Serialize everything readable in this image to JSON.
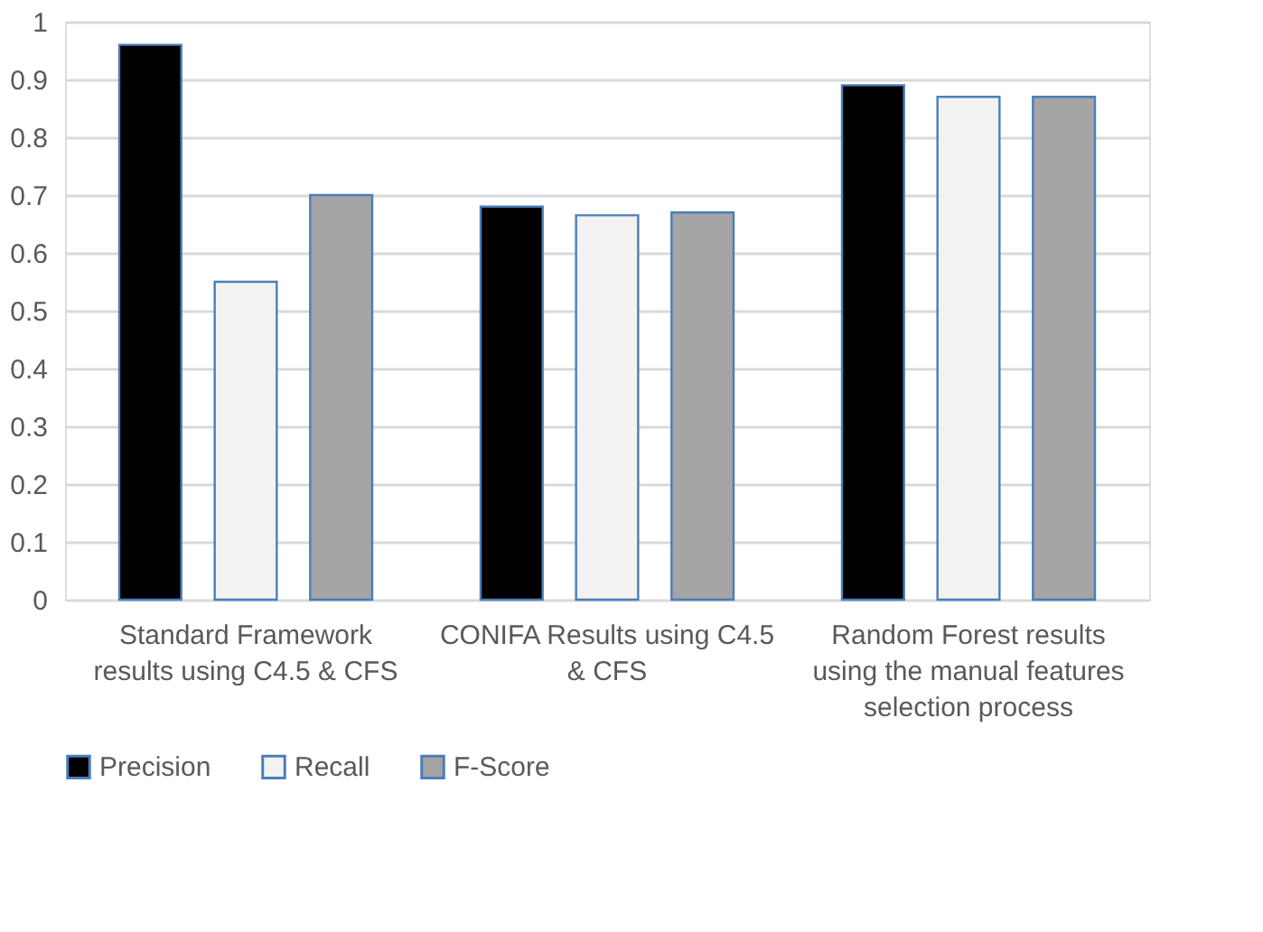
{
  "chart_data": {
    "type": "bar",
    "categories": [
      "Standard Framework results using C4.5 & CFS",
      "CONIFA Results using C4.5 & CFS",
      "Random Forest results using the manual features selection process"
    ],
    "series": [
      {
        "name": "Precision",
        "color": "#000000",
        "values": [
          0.96,
          0.68,
          0.89
        ]
      },
      {
        "name": "Recall",
        "color": "#f2f2f0",
        "values": [
          0.55,
          0.665,
          0.87
        ]
      },
      {
        "name": "F-Score",
        "color": "#a5a5a5",
        "values": [
          0.7,
          0.67,
          0.87
        ]
      }
    ],
    "ylim": [
      0,
      1
    ],
    "yticks": [
      0,
      0.1,
      0.2,
      0.3,
      0.4,
      0.5,
      0.6,
      0.7,
      0.8,
      0.9,
      1
    ],
    "grid": "y",
    "legend": "bottom"
  }
}
